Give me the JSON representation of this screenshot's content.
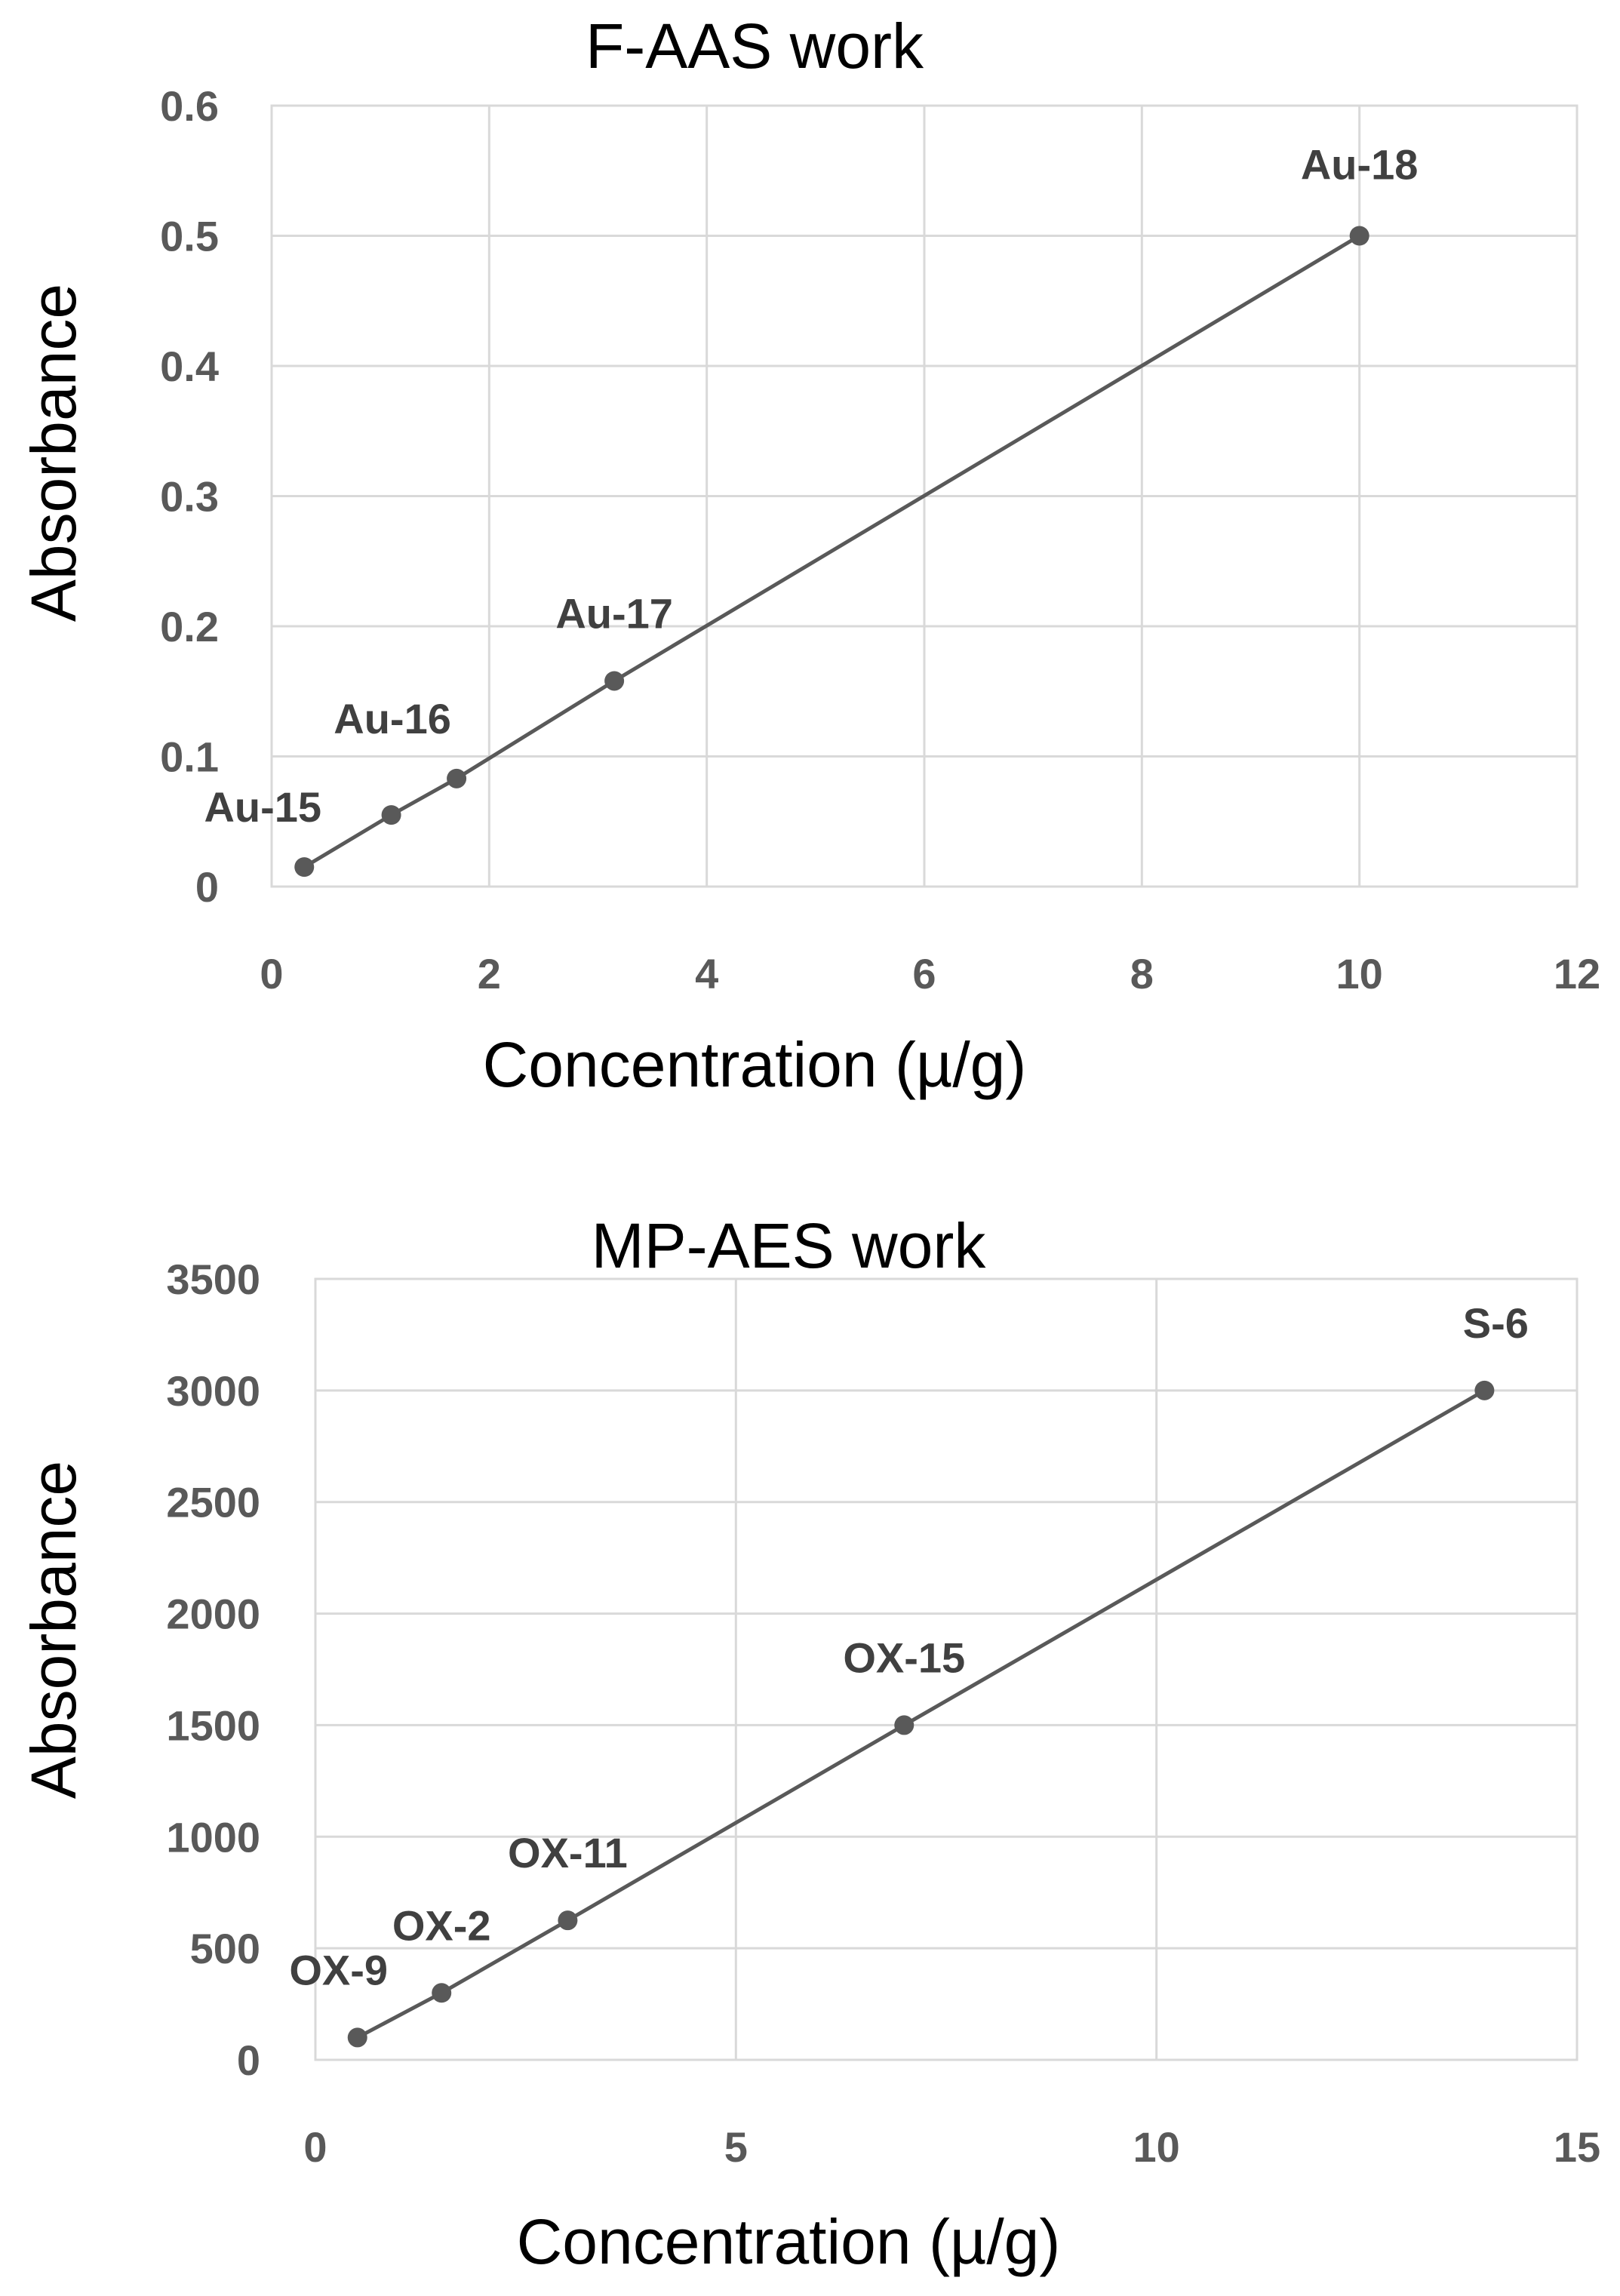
{
  "chart_data": [
    {
      "type": "line",
      "title": "F-AAS work",
      "xlabel": "Concentration (µ/g)",
      "ylabel": "Absorbance",
      "xlim": [
        0,
        12
      ],
      "ylim": [
        0,
        0.6
      ],
      "xticks": [
        "0",
        "2",
        "4",
        "6",
        "8",
        "10",
        "12"
      ],
      "yticks": [
        "0",
        "0.1",
        "0.2",
        "0.3",
        "0.4",
        "0.5",
        "0.6"
      ],
      "grid": true,
      "series": [
        {
          "name": "F-AAS",
          "points": [
            {
              "label": "Au-15",
              "x": 0.3,
              "y": 0.015
            },
            {
              "label": "",
              "x": 1.1,
              "y": 0.055
            },
            {
              "label": "Au-16",
              "x": 1.7,
              "y": 0.083
            },
            {
              "label": "Au-17",
              "x": 3.15,
              "y": 0.158
            },
            {
              "label": "Au-18",
              "x": 10.0,
              "y": 0.5
            }
          ]
        }
      ]
    },
    {
      "type": "line",
      "title": "MP-AES work",
      "xlabel": "Concentration (µ/g)",
      "ylabel": "Absorbance",
      "xlim": [
        0,
        15
      ],
      "ylim": [
        0,
        3500
      ],
      "xticks": [
        "0",
        "5",
        "10",
        "15"
      ],
      "yticks": [
        "0",
        "500",
        "1000",
        "1500",
        "2000",
        "2500",
        "3000",
        "3500"
      ],
      "grid": true,
      "series": [
        {
          "name": "MP-AES",
          "points": [
            {
              "label": "OX-9",
              "x": 0.5,
              "y": 100
            },
            {
              "label": "OX-2",
              "x": 1.5,
              "y": 300
            },
            {
              "label": "OX-11",
              "x": 3.0,
              "y": 625
            },
            {
              "label": "OX-15",
              "x": 7.0,
              "y": 1500
            },
            {
              "label": "S-6",
              "x": 13.9,
              "y": 3000
            }
          ]
        }
      ]
    }
  ]
}
